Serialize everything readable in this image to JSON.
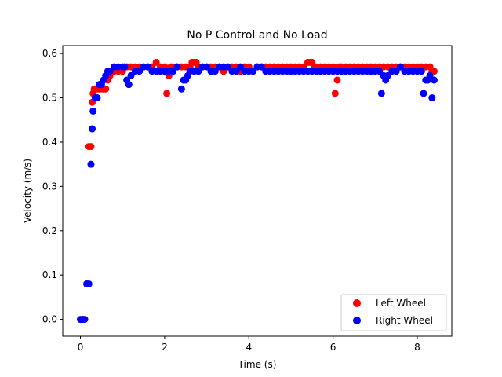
{
  "chart_data": {
    "type": "scatter",
    "title": "No P Control and No Load",
    "xlabel": "Time (s)",
    "ylabel": "Velocity (m/s)",
    "xlim": [
      -0.42,
      8.82
    ],
    "ylim": [
      -0.038,
      0.618
    ],
    "xticks": [
      "0",
      "2",
      "4",
      "6",
      "8"
    ],
    "yticks": [
      "0.0",
      "0.1",
      "0.2",
      "0.3",
      "0.4",
      "0.5",
      "0.6"
    ],
    "grid": false,
    "legend_position": "lower-right",
    "series": [
      {
        "name": "Left Wheel",
        "color": "#ff0000",
        "x": [
          0.05,
          0.1,
          0.15,
          0.2,
          0.25,
          0.28,
          0.3,
          0.33,
          0.36,
          0.4,
          0.45,
          0.5,
          0.55,
          0.6,
          0.65,
          0.7,
          0.8,
          0.9,
          1.0,
          1.1,
          1.2,
          1.3,
          1.4,
          1.5,
          1.6,
          1.7,
          1.8,
          1.9,
          2.0,
          2.05,
          2.1,
          2.15,
          2.2,
          2.3,
          2.4,
          2.5,
          2.6,
          2.65,
          2.7,
          2.75,
          2.8,
          2.9,
          3.0,
          3.1,
          3.2,
          3.3,
          3.4,
          3.5,
          3.6,
          3.7,
          3.8,
          3.9,
          4.0,
          4.1,
          4.2,
          4.3,
          4.4,
          4.5,
          4.6,
          4.7,
          4.8,
          4.9,
          5.0,
          5.1,
          5.2,
          5.3,
          5.4,
          5.45,
          5.5,
          5.55,
          5.6,
          5.7,
          5.8,
          5.9,
          6.0,
          6.05,
          6.1,
          6.15,
          6.2,
          6.3,
          6.4,
          6.5,
          6.6,
          6.7,
          6.8,
          6.9,
          7.0,
          7.1,
          7.2,
          7.3,
          7.4,
          7.5,
          7.6,
          7.7,
          7.8,
          7.9,
          8.0,
          8.1,
          8.2,
          8.3,
          8.35,
          8.4
        ],
        "y": [
          0.0,
          0.0,
          0.08,
          0.39,
          0.39,
          0.49,
          0.51,
          0.52,
          0.52,
          0.52,
          0.52,
          0.52,
          0.52,
          0.52,
          0.54,
          0.55,
          0.56,
          0.56,
          0.56,
          0.57,
          0.57,
          0.57,
          0.57,
          0.57,
          0.57,
          0.57,
          0.58,
          0.57,
          0.57,
          0.51,
          0.55,
          0.57,
          0.57,
          0.57,
          0.57,
          0.57,
          0.57,
          0.58,
          0.58,
          0.58,
          0.57,
          0.57,
          0.57,
          0.57,
          0.57,
          0.57,
          0.56,
          0.57,
          0.57,
          0.57,
          0.56,
          0.57,
          0.57,
          0.56,
          0.57,
          0.57,
          0.57,
          0.57,
          0.57,
          0.57,
          0.57,
          0.57,
          0.57,
          0.57,
          0.57,
          0.57,
          0.58,
          0.58,
          0.58,
          0.57,
          0.57,
          0.57,
          0.57,
          0.57,
          0.57,
          0.51,
          0.54,
          0.57,
          0.57,
          0.57,
          0.57,
          0.57,
          0.57,
          0.57,
          0.57,
          0.57,
          0.57,
          0.57,
          0.57,
          0.57,
          0.57,
          0.57,
          0.57,
          0.57,
          0.57,
          0.57,
          0.57,
          0.57,
          0.57,
          0.57,
          0.56,
          0.56
        ]
      },
      {
        "name": "Right Wheel",
        "color": "#0000ff",
        "x": [
          0.0,
          0.05,
          0.1,
          0.15,
          0.2,
          0.25,
          0.28,
          0.3,
          0.35,
          0.4,
          0.45,
          0.5,
          0.55,
          0.6,
          0.65,
          0.7,
          0.8,
          0.9,
          1.0,
          1.05,
          1.1,
          1.15,
          1.2,
          1.3,
          1.4,
          1.5,
          1.6,
          1.7,
          1.8,
          1.9,
          2.0,
          2.1,
          2.2,
          2.3,
          2.4,
          2.45,
          2.5,
          2.55,
          2.6,
          2.7,
          2.8,
          2.9,
          3.0,
          3.1,
          3.2,
          3.3,
          3.4,
          3.5,
          3.6,
          3.7,
          3.8,
          3.9,
          4.0,
          4.1,
          4.2,
          4.3,
          4.4,
          4.5,
          4.6,
          4.7,
          4.8,
          4.9,
          5.0,
          5.1,
          5.2,
          5.3,
          5.4,
          5.5,
          5.6,
          5.7,
          5.8,
          5.9,
          6.0,
          6.1,
          6.2,
          6.3,
          6.4,
          6.5,
          6.6,
          6.7,
          6.8,
          6.9,
          7.0,
          7.1,
          7.15,
          7.2,
          7.25,
          7.3,
          7.4,
          7.5,
          7.6,
          7.7,
          7.8,
          7.9,
          8.0,
          8.1,
          8.15,
          8.2,
          8.25,
          8.3,
          8.35,
          8.4
        ],
        "y": [
          0.0,
          0.0,
          0.0,
          0.08,
          0.08,
          0.35,
          0.43,
          0.47,
          0.5,
          0.5,
          0.53,
          0.53,
          0.54,
          0.55,
          0.56,
          0.56,
          0.57,
          0.57,
          0.57,
          0.57,
          0.54,
          0.53,
          0.55,
          0.56,
          0.56,
          0.57,
          0.57,
          0.56,
          0.56,
          0.56,
          0.56,
          0.56,
          0.56,
          0.57,
          0.52,
          0.54,
          0.54,
          0.55,
          0.56,
          0.56,
          0.56,
          0.57,
          0.57,
          0.56,
          0.56,
          0.57,
          0.57,
          0.57,
          0.56,
          0.56,
          0.57,
          0.56,
          0.56,
          0.56,
          0.57,
          0.57,
          0.56,
          0.56,
          0.56,
          0.56,
          0.56,
          0.56,
          0.56,
          0.56,
          0.56,
          0.56,
          0.56,
          0.56,
          0.56,
          0.56,
          0.56,
          0.56,
          0.56,
          0.56,
          0.56,
          0.56,
          0.56,
          0.56,
          0.56,
          0.56,
          0.56,
          0.56,
          0.56,
          0.56,
          0.51,
          0.55,
          0.54,
          0.55,
          0.56,
          0.56,
          0.57,
          0.56,
          0.56,
          0.56,
          0.56,
          0.56,
          0.51,
          0.54,
          0.54,
          0.55,
          0.5,
          0.54
        ]
      }
    ]
  }
}
